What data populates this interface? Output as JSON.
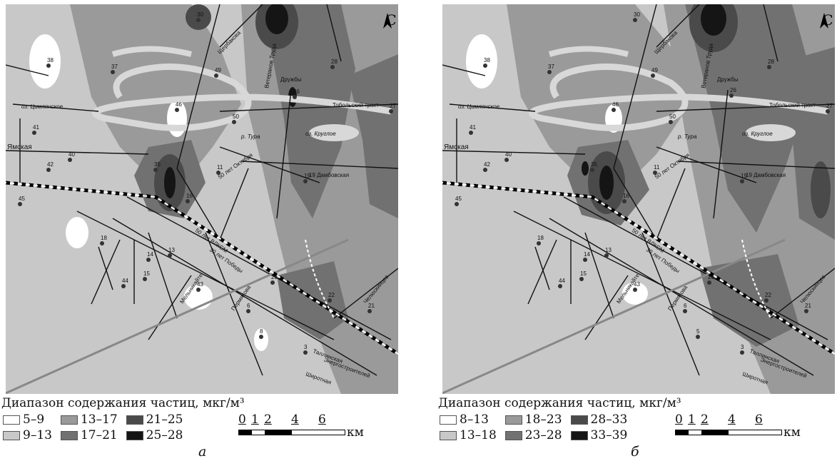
{
  "panels": [
    {
      "north": "С",
      "legend_title": "Диапазон содержания частиц, мкг/м³",
      "ranges": [
        {
          "label": "5–9",
          "color": "#ffffff"
        },
        {
          "label": "13–17",
          "color": "#9a9a9a"
        },
        {
          "label": "21–25",
          "color": "#4a4a4a"
        },
        {
          "label": "9–13",
          "color": "#c8c8c8"
        },
        {
          "label": "17–21",
          "color": "#717171"
        },
        {
          "label": "25–28",
          "color": "#151515"
        }
      ],
      "scale": {
        "ticks": [
          "0",
          "1",
          "2",
          "4",
          "6"
        ],
        "unit": "км"
      },
      "letter": "а",
      "labels": {
        "cimlyanskoe": "оз. Цимлянское",
        "yamskaya": "Ямская",
        "tura": "р. Тура",
        "krugloe": "оз. Круглое",
        "tobolsky": "Тобольский тракт",
        "dambovskaya": "19 Дамбовская",
        "ts50": "50 лет Октября",
        "vlksm": "50 лет ВЛКСМ",
        "pobedy": "30 лет Победы",
        "melnikayte": "Мельникайте",
        "permyakova": "Пермякова",
        "shirotnaya": "Широтная",
        "energo": "Энергостроителей",
        "chelyuskincev": "Челюскинцев",
        "druzhby": "Дружбы",
        "shcherbakova": "Щербакова",
        "vetrenaya": "Ветеранов Труда",
        "tallinskaya": "Таллинская"
      },
      "stations": [
        "38",
        "37",
        "30",
        "28",
        "49",
        "36",
        "27",
        "41",
        "40",
        "42",
        "45",
        "35",
        "11",
        "19",
        "18",
        "16",
        "14",
        "15",
        "13",
        "43",
        "44",
        "23",
        "22",
        "21",
        "6",
        "8",
        "3",
        "50",
        "46"
      ]
    },
    {
      "north": "С",
      "legend_title": "Диапазон содержания частиц, мкг/м³",
      "ranges": [
        {
          "label": "8–13",
          "color": "#ffffff"
        },
        {
          "label": "18–23",
          "color": "#9a9a9a"
        },
        {
          "label": "28–33",
          "color": "#4a4a4a"
        },
        {
          "label": "13–18",
          "color": "#c8c8c8"
        },
        {
          "label": "23–28",
          "color": "#717171"
        },
        {
          "label": "33–39",
          "color": "#151515"
        }
      ],
      "scale": {
        "ticks": [
          "0",
          "1",
          "2",
          "4",
          "6"
        ],
        "unit": "км"
      },
      "letter": "б",
      "labels": {
        "cimlyanskoe": "оз. Цимлянское",
        "yamskaya": "Ямская",
        "tura": "р. Тура",
        "krugloe": "оз. Круглое",
        "tobolsky": "Тобольский тракт",
        "dambovskaya": "19 Дамбовская",
        "ts50": "50 лет Октября",
        "vlksm": "50 лет ВЛКСМ",
        "pobedy": "30 лет Победы",
        "melnikayte": "Мельникайте",
        "permyakova": "Пермякова",
        "shirotnaya": "Широтная",
        "energo": "Энергостроителей",
        "chelyuskincev": "Челюскинцев",
        "druzhby": "Дружбы",
        "shcherbakova": "Щербакова",
        "vetrenaya": "Ветеранов Труда",
        "tallinskaya": "Таллинская"
      },
      "stations": [
        "38",
        "37",
        "30",
        "28",
        "49",
        "26",
        "27",
        "41",
        "40",
        "42",
        "45",
        "35",
        "11",
        "19",
        "18",
        "16",
        "14",
        "15",
        "13",
        "43",
        "44",
        "23",
        "22",
        "21",
        "6",
        "5",
        "3",
        "50",
        "46"
      ]
    }
  ]
}
